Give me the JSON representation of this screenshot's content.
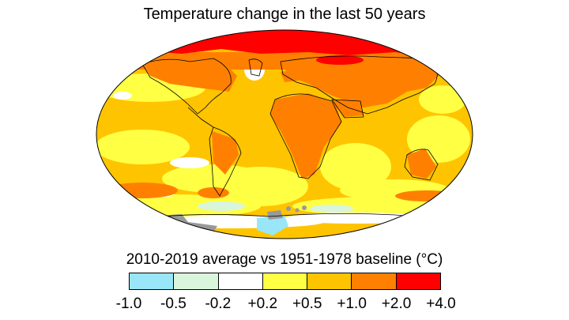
{
  "title": "Temperature change in the last 50 years",
  "subtitle": "2010-2019 average vs 1951-1978 baseline (°C)",
  "legend": {
    "bins": [
      {
        "range": "-1.0 to -0.5",
        "color": "#99e6f8"
      },
      {
        "range": "-0.5 to -0.2",
        "color": "#d9f5dc"
      },
      {
        "range": "-0.2 to +0.2",
        "color": "#ffffff"
      },
      {
        "range": "+0.2 to +0.5",
        "color": "#ffff44"
      },
      {
        "range": "+0.5 to +1.0",
        "color": "#ffc400"
      },
      {
        "range": "+1.0 to +2.0",
        "color": "#ff8000"
      },
      {
        "range": "+2.0 to +4.0",
        "color": "#ff0000"
      }
    ],
    "ticks": [
      "-1.0",
      "-0.5",
      "-0.2",
      "+0.2",
      "+0.5",
      "+1.0",
      "+2.0",
      "+4.0"
    ]
  },
  "colors": {
    "no_data": "#999999",
    "coastline": "#000000",
    "map_outline": "#000000"
  }
}
